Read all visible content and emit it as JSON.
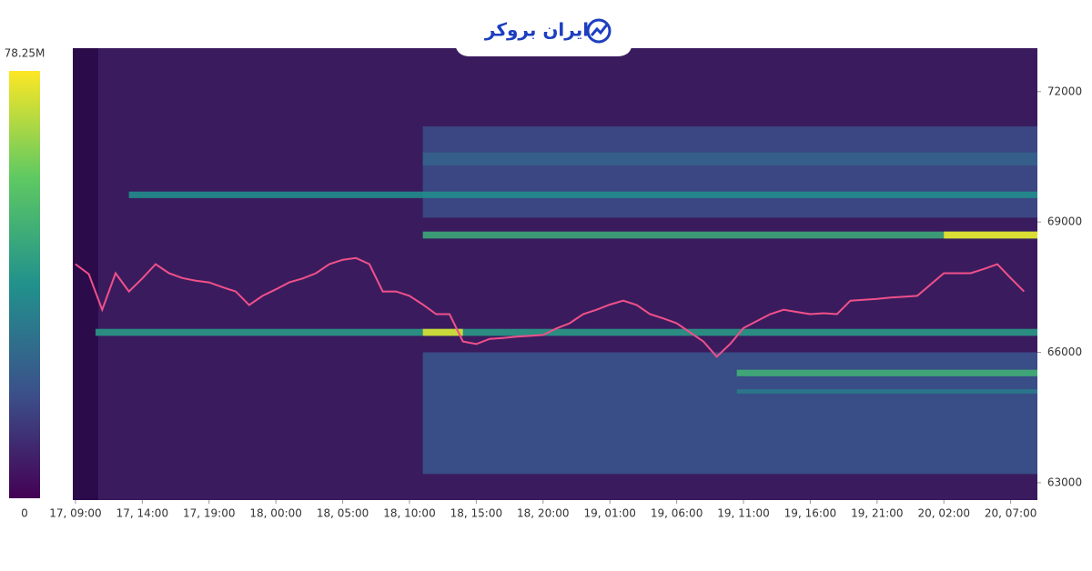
{
  "brand": "ایران بروکر",
  "chart_data": {
    "type": "heatmap",
    "colorbar": {
      "zlim": [
        0,
        78.25
      ],
      "ticks": [
        {
          "value": 78.25,
          "label": "78.25M"
        },
        0
      ]
    },
    "xlim": [
      -0.2,
      72
    ],
    "xticks": [
      {
        "value": 0,
        "label": "17, 09:00"
      },
      {
        "value": 5,
        "label": "17, 14:00"
      },
      {
        "value": 10,
        "label": "17, 19:00"
      },
      {
        "value": 15,
        "label": "18, 00:00"
      },
      {
        "value": 20,
        "label": "18, 05:00"
      },
      {
        "value": 25,
        "label": "18, 10:00"
      },
      {
        "value": 30,
        "label": "18, 15:00"
      },
      {
        "value": 35,
        "label": "18, 20:00"
      },
      {
        "value": 40,
        "label": "19, 01:00"
      },
      {
        "value": 45,
        "label": "19, 06:00"
      },
      {
        "value": 50,
        "label": "19, 11:00"
      },
      {
        "value": 55,
        "label": "19, 16:00"
      },
      {
        "value": 60,
        "label": "19, 21:00"
      },
      {
        "value": 65,
        "label": "20, 02:00"
      },
      {
        "value": 70,
        "label": "20, 07:00"
      }
    ],
    "ylim": [
      62600,
      73000
    ],
    "yticks": [
      63000,
      66000,
      69000,
      72000
    ],
    "bands": [
      {
        "low": 69100,
        "high": 71200,
        "start": 26,
        "end": 72,
        "value": 18
      },
      {
        "low": 63200,
        "high": 66000,
        "start": 26,
        "end": 72,
        "value": 20
      },
      {
        "low": 70300,
        "high": 70600,
        "start": 26,
        "end": 72,
        "value": 24
      },
      {
        "low": 69550,
        "high": 69700,
        "start": 4,
        "end": 72,
        "value": 38
      },
      {
        "low": 68620,
        "high": 68780,
        "start": 26,
        "end": 72,
        "value": 48
      },
      {
        "low": 68620,
        "high": 68780,
        "start": 65,
        "end": 72,
        "value": 76
      },
      {
        "low": 66380,
        "high": 66540,
        "start": 1.5,
        "end": 72,
        "value": 42
      },
      {
        "low": 66380,
        "high": 66540,
        "start": 26,
        "end": 29,
        "value": 74
      },
      {
        "low": 65450,
        "high": 65600,
        "start": 49.5,
        "end": 72,
        "value": 50
      },
      {
        "low": 65050,
        "high": 65150,
        "start": 49.5,
        "end": 72,
        "value": 32
      }
    ],
    "price": {
      "color": "#f0508a",
      "x": [
        0,
        1,
        2,
        3,
        4,
        5,
        6,
        7,
        8,
        9,
        10,
        11,
        12,
        13,
        14,
        15,
        16,
        17,
        18,
        19,
        20,
        21,
        22,
        23,
        24,
        25,
        26,
        27,
        28,
        29,
        30,
        31,
        32,
        33,
        34,
        35,
        36,
        37,
        38,
        39,
        40,
        41,
        42,
        43,
        44,
        45,
        46,
        47,
        48,
        49,
        50,
        51,
        52,
        53,
        54,
        55,
        56,
        57,
        58,
        59,
        60,
        61,
        62,
        63,
        64,
        65,
        66,
        67,
        68,
        69,
        70,
        71
      ],
      "values": [
        68030,
        67800,
        66980,
        67820,
        67400,
        67700,
        68030,
        67820,
        67710,
        67650,
        67610,
        67500,
        67400,
        67090,
        67300,
        67450,
        67610,
        67700,
        67820,
        68030,
        68130,
        68170,
        68030,
        67400,
        67400,
        67300,
        67100,
        66880,
        66880,
        66250,
        66190,
        66310,
        66330,
        66360,
        66380,
        66400,
        66550,
        66670,
        66880,
        66980,
        67100,
        67190,
        67090,
        66880,
        66780,
        66670,
        66460,
        66250,
        65900,
        66190,
        66560,
        66720,
        66880,
        66980,
        66930,
        66880,
        66900,
        66880,
        67190,
        67210,
        67230,
        67260,
        67280,
        67300,
        67560,
        67820,
        67820,
        67820,
        67920,
        68030,
        67710,
        67400
      ]
    }
  }
}
